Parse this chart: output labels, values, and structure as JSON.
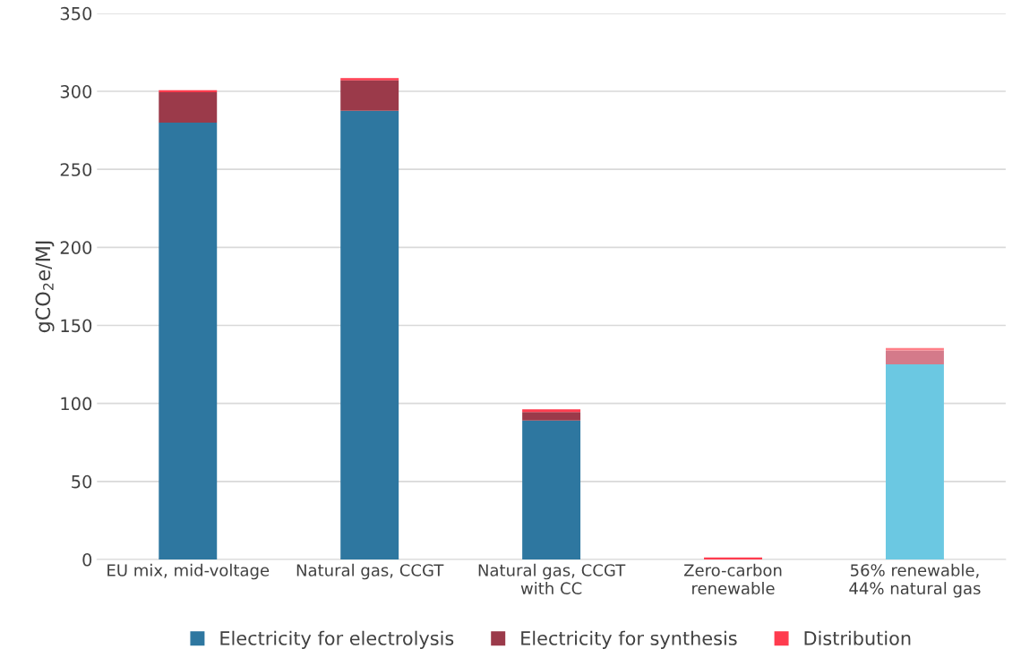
{
  "chart_data": {
    "type": "bar",
    "stacked": true,
    "ylabel": "gCO$_{2}$e/MJ",
    "categories": [
      "EU mix, mid-voltage",
      "Natural gas, CCGT",
      "Natural gas, CCGT\nwith CC",
      "Zero-carbon\nrenewable",
      "56% renewable,\n44% natural gas"
    ],
    "series": [
      {
        "name": "Electricity for electrolysis",
        "color": "#2e77a0",
        "colors": [
          "#2e77a0",
          "#2e77a0",
          "#2e77a0",
          "#2e77a0",
          "#6bc8e2"
        ],
        "values": [
          280,
          287.5,
          89,
          0,
          125
        ]
      },
      {
        "name": "Electricity for synthesis",
        "color": "#9b3a4a",
        "colors": [
          "#9b3a4a",
          "#9b3a4a",
          "#9b3a4a",
          "#9b3a4a",
          "#d47a8a"
        ],
        "values": [
          19.5,
          19.5,
          5.5,
          0,
          9
        ]
      },
      {
        "name": "Distribution",
        "color": "#ff3b4e",
        "colors": [
          "#ff3b4e",
          "#ff3b4e",
          "#ff3b4e",
          "#ff3b4e",
          "#ff8088"
        ],
        "values": [
          1.2,
          1.5,
          1.7,
          1.3,
          1.5
        ]
      }
    ],
    "ylim": [
      0,
      350
    ],
    "yticks": [
      0,
      50,
      100,
      150,
      200,
      250,
      300,
      350
    ],
    "grid": "y",
    "legend": "bottom"
  }
}
